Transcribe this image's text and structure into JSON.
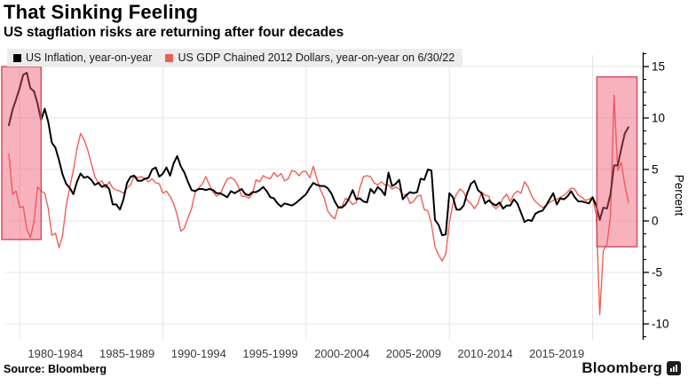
{
  "header": {
    "title": "That Sinking Feeling",
    "subtitle": "US stagflation risks are returning after four decades"
  },
  "legend": [
    {
      "label": "US Inflation, year-on-year",
      "color": "#000000"
    },
    {
      "label": "US GDP Chained 2012 Dollars, year-on-year on 6/30/22",
      "color": "#ee5f55"
    }
  ],
  "footer": {
    "source": "Source: Bloomberg",
    "brand": "Bloomberg"
  },
  "chart_data": {
    "type": "line",
    "title": "That Sinking Feeling",
    "subtitle": "US stagflation risks are returning after four decades",
    "ylabel": "Percent",
    "xlabel": "",
    "grid": true,
    "legend_position": "top-left",
    "ylim": [
      -11.5,
      16.3
    ],
    "yticks": [
      15,
      10,
      5,
      0,
      -5,
      -10
    ],
    "minor_tick_step": 1.25,
    "xlim": [
      1979,
      2023.5
    ],
    "x_gridline_years": [
      1980,
      1990,
      2000,
      2010,
      2020
    ],
    "xtick_labels": [
      {
        "label": "1980-1984",
        "center_year": 1982.5
      },
      {
        "label": "1985-1989",
        "center_year": 1987.5
      },
      {
        "label": "1990-1994",
        "center_year": 1992.5
      },
      {
        "label": "1995-1999",
        "center_year": 1997.5
      },
      {
        "label": "2000-2004",
        "center_year": 2002.5
      },
      {
        "label": "2005-2009",
        "center_year": 2007.5
      },
      {
        "label": "2010-2014",
        "center_year": 2012.5
      },
      {
        "label": "2015-2019",
        "center_year": 2017.5
      }
    ],
    "highlight_regions": [
      {
        "x0": 1978.75,
        "x1": 1981.5,
        "y0": -1.8,
        "y1": 15.0,
        "fill": "rgba(238,84,108,0.45)",
        "border": "#d64f62"
      },
      {
        "x0": 2020.3,
        "x1": 2023.1,
        "y0": -2.5,
        "y1": 14.0,
        "fill": "rgba(238,84,108,0.45)",
        "border": "#d64f62"
      }
    ],
    "series": [
      {
        "name": "US Inflation, year-on-year",
        "color": "#000000",
        "stroke_width": 2,
        "frequency": "quarterly",
        "x_start": 1979.25,
        "x_step": 0.25,
        "values": [
          9.3,
          10.8,
          11.8,
          12.9,
          14.2,
          14.4,
          12.9,
          12.6,
          11.4,
          9.8,
          10.9,
          9.6,
          7.6,
          7.1,
          5.9,
          4.5,
          3.6,
          3.2,
          2.6,
          3.8,
          4.6,
          4.2,
          4.3,
          4.0,
          3.5,
          3.7,
          3.3,
          3.5,
          3.1,
          1.6,
          1.6,
          1.1,
          2.1,
          3.7,
          4.3,
          4.4,
          3.9,
          3.9,
          4.1,
          4.2,
          5.0,
          5.2,
          4.3,
          4.6,
          5.2,
          4.4,
          5.6,
          6.3,
          5.3,
          4.7,
          3.8,
          3.0,
          2.9,
          3.1,
          3.1,
          3.0,
          3.1,
          3.0,
          2.7,
          2.7,
          2.5,
          2.3,
          2.9,
          2.7,
          2.9,
          3.1,
          2.6,
          2.5,
          2.8,
          2.8,
          3.0,
          3.3,
          2.9,
          2.3,
          2.2,
          1.7,
          1.4,
          1.7,
          1.6,
          1.5,
          1.7,
          2.0,
          2.3,
          2.6,
          3.2,
          3.7,
          3.5,
          3.4,
          3.4,
          3.2,
          2.7,
          1.9,
          1.3,
          1.3,
          1.6,
          2.2,
          3.0,
          2.1,
          2.2,
          1.9,
          1.8,
          3.1,
          2.7,
          3.3,
          3.0,
          2.5,
          4.7,
          3.4,
          3.6,
          4.0,
          2.1,
          2.5,
          2.8,
          2.7,
          2.8,
          4.1,
          4.0,
          5.0,
          4.9,
          0.1,
          -0.4,
          -1.4,
          -1.3,
          2.7,
          2.3,
          1.1,
          1.1,
          1.5,
          2.7,
          3.6,
          3.9,
          3.0,
          2.7,
          1.7,
          2.0,
          1.7,
          1.5,
          1.8,
          1.2,
          1.5,
          1.5,
          2.1,
          1.7,
          0.8,
          -0.1,
          0.1,
          0.0,
          0.7,
          0.9,
          1.0,
          1.5,
          2.1,
          2.7,
          1.6,
          2.2,
          2.1,
          2.4,
          2.9,
          2.3,
          1.9,
          1.9,
          1.8,
          1.7,
          2.3,
          1.5,
          0.1,
          1.3,
          1.2,
          2.6,
          5.4,
          5.4,
          7.0,
          8.5,
          9.1
        ]
      },
      {
        "name": "US GDP Chained 2012 Dollars, year-on-year on 6/30/22",
        "color": "#ee5f55",
        "stroke_width": 1.4,
        "frequency": "quarterly",
        "x_start": 1979.25,
        "x_step": 0.25,
        "values": [
          6.5,
          2.6,
          2.9,
          1.3,
          1.4,
          -0.8,
          -1.6,
          -0.1,
          3.3,
          2.9,
          2.7,
          1.2,
          -1.4,
          -1.2,
          -2.6,
          -1.4,
          1.5,
          3.3,
          4.9,
          7.0,
          8.5,
          7.9,
          6.9,
          5.6,
          4.3,
          3.7,
          3.9,
          3.2,
          3.8,
          3.2,
          3.0,
          2.9,
          2.7,
          3.2,
          3.5,
          4.4,
          4.2,
          4.3,
          4.1,
          3.8,
          4.1,
          3.7,
          3.6,
          2.7,
          2.9,
          2.4,
          1.7,
          0.6,
          -1.0,
          -0.7,
          0.3,
          1.2,
          2.8,
          3.2,
          3.6,
          4.3,
          3.5,
          2.8,
          2.4,
          2.6,
          3.4,
          4.1,
          4.2,
          4.0,
          3.4,
          2.4,
          2.4,
          2.2,
          2.6,
          4.0,
          3.8,
          4.4,
          4.2,
          4.1,
          4.7,
          4.3,
          4.6,
          3.9,
          4.1,
          4.9,
          4.8,
          4.4,
          4.8,
          4.8,
          4.2,
          5.3,
          4.1,
          3.0,
          2.3,
          1.0,
          0.5,
          0.2,
          1.4,
          1.4,
          2.2,
          2.0,
          1.6,
          1.8,
          3.2,
          4.3,
          4.4,
          4.3,
          3.7,
          3.5,
          3.8,
          3.5,
          3.5,
          3.1,
          3.3,
          3.1,
          2.5,
          2.6,
          1.7,
          1.9,
          2.4,
          2.5,
          1.1,
          1.0,
          -0.3,
          -2.5,
          -3.3,
          -3.9,
          -3.2,
          -0.2,
          1.7,
          2.6,
          3.1,
          2.8,
          2.0,
          1.7,
          1.2,
          1.7,
          2.8,
          2.5,
          2.4,
          1.5,
          1.2,
          1.5,
          2.2,
          2.6,
          1.9,
          2.6,
          2.9,
          2.7,
          3.8,
          3.3,
          2.4,
          1.9,
          1.6,
          1.3,
          1.5,
          1.8,
          2.0,
          2.1,
          2.3,
          2.5,
          2.8,
          3.2,
          3.1,
          2.5,
          2.3,
          2.0,
          2.1,
          2.3,
          0.6,
          -9.1,
          -2.9,
          -2.3,
          0.5,
          12.2,
          4.9,
          5.7,
          3.5,
          1.8
        ]
      }
    ]
  }
}
